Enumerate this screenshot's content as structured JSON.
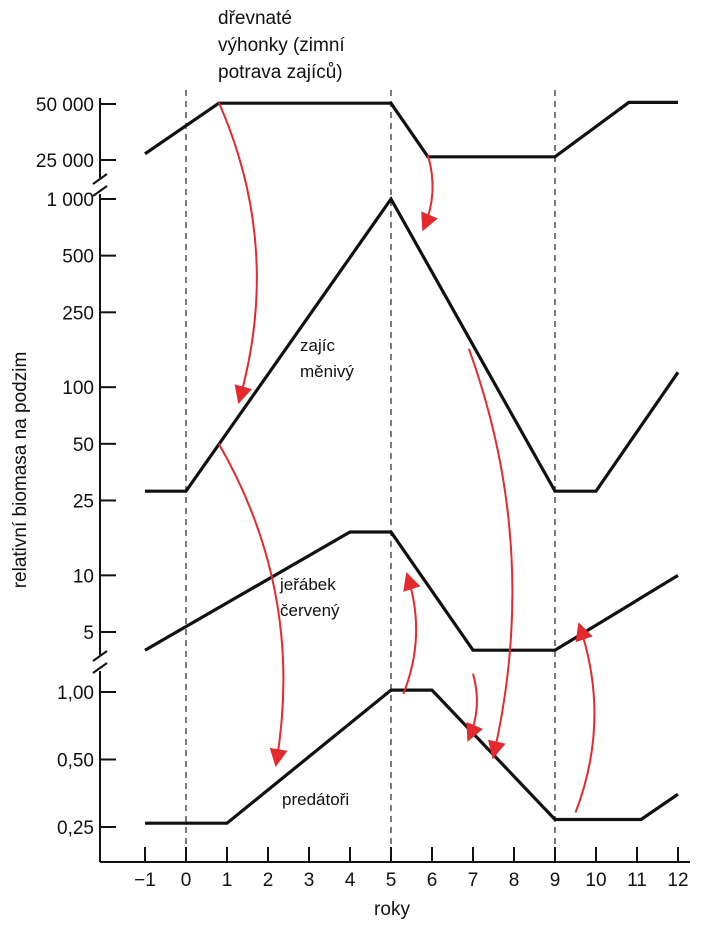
{
  "chart_data": {
    "type": "line",
    "xlabel": "roky",
    "ylabel": "relativní biomasa na podzim",
    "x_ticks": [
      "−1",
      "0",
      "1",
      "2",
      "3",
      "4",
      "5",
      "6",
      "7",
      "8",
      "9",
      "10",
      "11",
      "12"
    ],
    "x_range": [
      -1,
      12
    ],
    "x_scale_anchor": {
      "x_at_0": 186,
      "px_per_unit": 41
    },
    "dashed_years": [
      0,
      5,
      9
    ],
    "panels": [
      {
        "id": "shoots",
        "y_scale": "log",
        "y_ticks": [
          {
            "value": 25000,
            "label": "25 000"
          },
          {
            "value": 50000,
            "label": "50 000"
          }
        ],
        "pixel_map": {
          "lo": 25000,
          "hi": 50000,
          "lo_px": 160,
          "hi_px": 104
        }
      },
      {
        "id": "prey",
        "y_scale": "log",
        "y_ticks": [
          {
            "value": 5,
            "label": "5"
          },
          {
            "value": 10,
            "label": "10"
          },
          {
            "value": 25,
            "label": "25"
          },
          {
            "value": 50,
            "label": "50"
          },
          {
            "value": 100,
            "label": "100"
          },
          {
            "value": 250,
            "label": "250"
          },
          {
            "value": 500,
            "label": "500"
          },
          {
            "value": 1000,
            "label": "1 000"
          }
        ],
        "pixel_map": {
          "lo": 5,
          "hi": 1000,
          "lo_px": 632,
          "hi_px": 199
        }
      },
      {
        "id": "predators",
        "y_scale": "log",
        "y_ticks": [
          {
            "value": 0.25,
            "label": "0,25"
          },
          {
            "value": 0.5,
            "label": "0,50"
          },
          {
            "value": 1.0,
            "label": "1,00"
          }
        ],
        "pixel_map": {
          "lo": 0.25,
          "hi": 1.0,
          "lo_px": 827,
          "hi_px": 692
        }
      }
    ],
    "series": [
      {
        "name": "dřevnaté výhonky (zimní potrava zajíců)",
        "label_lines": [
          "dřevnaté",
          "výhonky (zimní",
          "potrava zajíců)"
        ],
        "panel": "shoots",
        "x": [
          -1,
          0.8,
          5,
          5.9,
          9,
          10.8,
          12
        ],
        "y": [
          27000,
          50500,
          50500,
          26000,
          26000,
          51000,
          51000
        ]
      },
      {
        "name": "zajíc měnivý",
        "label_lines": [
          "zajíc",
          "měnivý"
        ],
        "panel": "prey",
        "x": [
          -1,
          0,
          5,
          9,
          10,
          12
        ],
        "y": [
          28,
          28,
          1000,
          28,
          28,
          120
        ]
      },
      {
        "name": "jeřábek červený",
        "label_lines": [
          "jeřábek",
          "červený"
        ],
        "panel": "prey",
        "x": [
          -1,
          4,
          5,
          7,
          9,
          12
        ],
        "y": [
          4,
          17,
          17,
          4,
          4,
          10
        ]
      },
      {
        "name": "predátoři",
        "label_lines": [
          "predátoři"
        ],
        "panel": "predators",
        "x": [
          -1,
          1,
          5,
          6,
          9,
          11.1,
          12
        ],
        "y": [
          0.26,
          0.26,
          1.02,
          1.02,
          0.27,
          0.27,
          0.35
        ]
      }
    ],
    "arrows": [
      {
        "from": [
          0.8,
          51000,
          "shoots"
        ],
        "to": [
          1.3,
          85,
          "prey"
        ]
      },
      {
        "from": [
          5.9,
          26500,
          "shoots"
        ],
        "to": [
          5.8,
          700,
          "prey"
        ]
      },
      {
        "from": [
          0.8,
          50,
          "prey"
        ],
        "to": [
          2.2,
          0.48,
          "predators"
        ]
      },
      {
        "from": [
          6.9,
          160,
          "prey"
        ],
        "to": [
          7.5,
          0.52,
          "predators"
        ]
      },
      {
        "from": [
          5.3,
          0.98,
          "predators"
        ],
        "to": [
          5.4,
          10,
          "prey"
        ]
      },
      {
        "from": [
          7,
          3,
          "prey"
        ],
        "to": [
          6.9,
          0.62,
          "predators"
        ]
      },
      {
        "from": [
          9.5,
          0.29,
          "predators"
        ],
        "to": [
          9.6,
          5.4,
          "prey"
        ]
      }
    ],
    "colors": {
      "line": "#111111",
      "arrow": "#e5292c",
      "dash": "#333333"
    }
  }
}
